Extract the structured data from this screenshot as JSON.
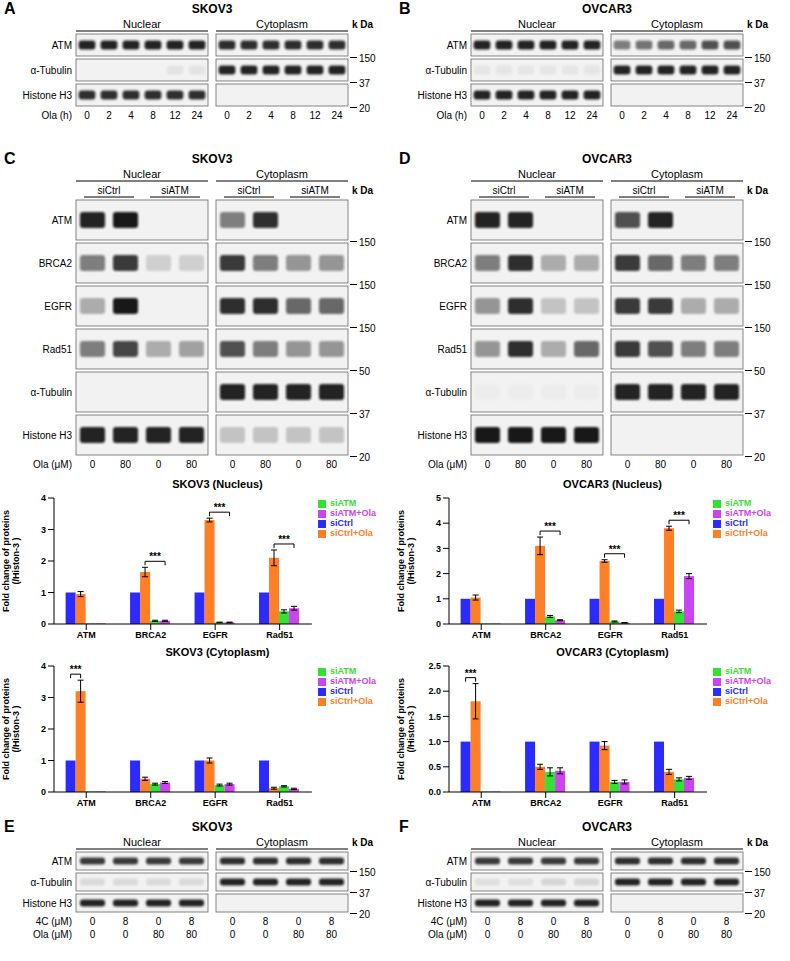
{
  "chart_data": [
    {
      "type": "bar",
      "title": "SKOV3 (Nucleus)",
      "y_label": "Fold change of proteins (/Histon-3 )",
      "categories": [
        "ATM",
        "BRCA2",
        "EGFR",
        "Rad51"
      ],
      "series": [
        {
          "name": "siCtrl",
          "color": "#2b2bff",
          "values": [
            1,
            1,
            1,
            1
          ],
          "errors": [
            0,
            0,
            0,
            0
          ]
        },
        {
          "name": "siCtrl+Ola",
          "color": "#ff7f27",
          "values": [
            0.95,
            1.65,
            3.3,
            2.1
          ],
          "errors": [
            0.08,
            0.15,
            0.06,
            0.25
          ]
        },
        {
          "name": "siATM",
          "color": "#33e033",
          "values": [
            0.02,
            0.1,
            0.05,
            0.4
          ],
          "errors": [
            0,
            0.02,
            0.01,
            0.05
          ]
        },
        {
          "name": "siATM+Ola",
          "color": "#cc44ee",
          "values": [
            0.02,
            0.1,
            0.05,
            0.5
          ],
          "errors": [
            0,
            0.02,
            0.01,
            0.06
          ]
        }
      ],
      "ylim": [
        0,
        4
      ],
      "yticks": [
        0,
        1,
        2,
        3,
        4
      ],
      "legend": "top-right",
      "annotations": [
        {
          "category": "BRCA2",
          "from": "siCtrl+Ola",
          "to": "siATM+Ola",
          "label": "***"
        },
        {
          "category": "EGFR",
          "from": "siCtrl+Ola",
          "to": "siATM+Ola",
          "label": "***"
        },
        {
          "category": "Rad51",
          "from": "siCtrl+Ola",
          "to": "siATM+Ola",
          "label": "***"
        }
      ]
    },
    {
      "type": "bar",
      "title": "OVCAR3 (Nucleus)",
      "y_label": "Fold change of proteins (/Histon-3 )",
      "categories": [
        "ATM",
        "BRCA2",
        "EGFR",
        "Rad51"
      ],
      "series": [
        {
          "name": "siCtrl",
          "color": "#2b2bff",
          "values": [
            1,
            1,
            1,
            1
          ],
          "errors": [
            0,
            0,
            0,
            0
          ]
        },
        {
          "name": "siCtrl+Ola",
          "color": "#ff7f27",
          "values": [
            1.05,
            3.1,
            2.5,
            3.8
          ],
          "errors": [
            0.1,
            0.35,
            0.05,
            0.08
          ]
        },
        {
          "name": "siATM",
          "color": "#33e033",
          "values": [
            0.02,
            0.3,
            0.1,
            0.5
          ],
          "errors": [
            0,
            0.04,
            0.02,
            0.05
          ]
        },
        {
          "name": "siATM+Ola",
          "color": "#cc44ee",
          "values": [
            0.02,
            0.15,
            0.05,
            1.9
          ],
          "errors": [
            0,
            0.02,
            0.01,
            0.1
          ]
        }
      ],
      "ylim": [
        0,
        5
      ],
      "yticks": [
        0,
        1,
        2,
        3,
        4,
        5
      ],
      "legend": "top-right",
      "annotations": [
        {
          "category": "BRCA2",
          "from": "siCtrl+Ola",
          "to": "siATM+Ola",
          "label": "***"
        },
        {
          "category": "EGFR",
          "from": "siCtrl+Ola",
          "to": "siATM+Ola",
          "label": "***"
        },
        {
          "category": "Rad51",
          "from": "siCtrl+Ola",
          "to": "siATM+Ola",
          "label": "***"
        }
      ]
    },
    {
      "type": "bar",
      "title": "SKOV3 (Cytoplasm)",
      "y_label": "Fold change of proteins (/Histon-3 )",
      "categories": [
        "ATM",
        "BRCA2",
        "EGFR",
        "Rad51"
      ],
      "series": [
        {
          "name": "siCtrl",
          "color": "#2b2bff",
          "values": [
            1,
            1,
            1,
            1
          ],
          "errors": [
            0,
            0,
            0,
            0
          ]
        },
        {
          "name": "siCtrl+Ola",
          "color": "#ff7f27",
          "values": [
            3.2,
            0.42,
            1.0,
            0.12
          ],
          "errors": [
            0.35,
            0.05,
            0.08,
            0.03
          ]
        },
        {
          "name": "siATM",
          "color": "#33e033",
          "values": [
            0.02,
            0.25,
            0.22,
            0.18
          ],
          "errors": [
            0,
            0.03,
            0.03,
            0.02
          ]
        },
        {
          "name": "siATM+Ola",
          "color": "#cc44ee",
          "values": [
            0.02,
            0.3,
            0.25,
            0.1
          ],
          "errors": [
            0,
            0.03,
            0.03,
            0.02
          ]
        }
      ],
      "ylim": [
        0,
        4
      ],
      "yticks": [
        0,
        1,
        2,
        3,
        4
      ],
      "legend": "top-right",
      "annotations": [
        {
          "category": "ATM",
          "from": "siCtrl",
          "to": "siCtrl+Ola",
          "label": "***"
        }
      ]
    },
    {
      "type": "bar",
      "title": "OVCAR3 (Cytoplasm)",
      "y_label": "Fold change of proteins (/Histon-3 )",
      "categories": [
        "ATM",
        "BRCA2",
        "EGFR",
        "Rad51"
      ],
      "series": [
        {
          "name": "siCtrl",
          "color": "#2b2bff",
          "values": [
            1,
            1,
            1,
            1
          ],
          "errors": [
            0,
            0,
            0,
            0
          ]
        },
        {
          "name": "siCtrl+Ola",
          "color": "#ff7f27",
          "values": [
            1.8,
            0.5,
            0.92,
            0.4
          ],
          "errors": [
            0.35,
            0.05,
            0.08,
            0.05
          ]
        },
        {
          "name": "siATM",
          "color": "#33e033",
          "values": [
            0.01,
            0.4,
            0.2,
            0.25
          ],
          "errors": [
            0,
            0.08,
            0.03,
            0.03
          ]
        },
        {
          "name": "siATM+Ola",
          "color": "#cc44ee",
          "values": [
            0.01,
            0.42,
            0.2,
            0.28
          ],
          "errors": [
            0,
            0.06,
            0.04,
            0.03
          ]
        }
      ],
      "ylim": [
        0,
        2.5
      ],
      "yticks": [
        {
          "value": 0,
          "label": "0.0"
        },
        {
          "value": 0.5,
          "label": "0.5"
        },
        {
          "value": 1,
          "label": "1.0"
        },
        {
          "value": 1.5,
          "label": "1.5"
        },
        {
          "value": 2,
          "label": "2.0"
        },
        {
          "value": 2.5,
          "label": "2.5"
        }
      ],
      "legend": "top-right",
      "annotations": [
        {
          "category": "ATM",
          "from": "siCtrl",
          "to": "siCtrl+Ola",
          "label": "***"
        }
      ]
    }
  ],
  "blots": [
    {
      "letter": "A",
      "title": "SKOV3",
      "unit": "k Da",
      "rows": [
        "ATM",
        "α-Tubulin",
        "Histone H3"
      ],
      "groups": [
        {
          "name": "Nuclear",
          "bands": [
            [
              0.9,
              0.9,
              0.9,
              0.9,
              0.9,
              0.9
            ],
            [
              0,
              0,
              0,
              0,
              0.06,
              0.06
            ],
            [
              0.85,
              0.85,
              0.85,
              0.85,
              0.85,
              0.85
            ]
          ]
        },
        {
          "name": "Cytoplasm",
          "bands": [
            [
              0.85,
              0.85,
              0.85,
              0.85,
              0.85,
              0.85
            ],
            [
              0.9,
              0.9,
              0.9,
              0.9,
              0.9,
              0.9
            ],
            [
              0,
              0,
              0,
              0,
              0,
              0
            ]
          ]
        }
      ],
      "markers": [
        {
          "label": "150",
          "row": 0
        },
        {
          "label": "37",
          "row": 1
        },
        {
          "label": "20",
          "row": 2
        }
      ],
      "lane_labels": [
        {
          "name": "Ola (h)",
          "values": [
            "0",
            "2",
            "4",
            "8",
            "12",
            "24"
          ]
        }
      ]
    },
    {
      "letter": "B",
      "title": "OVCAR3",
      "unit": "k Da",
      "rows": [
        "ATM",
        "α-Tubulin",
        "Histone H3"
      ],
      "groups": [
        {
          "name": "Nuclear",
          "bands": [
            [
              0.9,
              0.9,
              0.9,
              0.9,
              0.9,
              0.9
            ],
            [
              0.05,
              0.05,
              0.05,
              0.05,
              0.05,
              0.05
            ],
            [
              0.9,
              0.9,
              0.9,
              0.9,
              0.9,
              0.9
            ]
          ]
        },
        {
          "name": "Cytoplasm",
          "bands": [
            [
              0.5,
              0.55,
              0.6,
              0.6,
              0.7,
              0.7
            ],
            [
              0.9,
              0.9,
              0.9,
              0.9,
              0.9,
              0.9
            ],
            [
              0,
              0,
              0,
              0,
              0,
              0
            ]
          ]
        }
      ],
      "markers": [
        {
          "label": "150",
          "row": 0
        },
        {
          "label": "37",
          "row": 1
        },
        {
          "label": "20",
          "row": 2
        }
      ],
      "lane_labels": [
        {
          "name": "Ola (h)",
          "values": [
            "0",
            "2",
            "4",
            "8",
            "12",
            "24"
          ]
        }
      ]
    },
    {
      "letter": "C",
      "title": "SKOV3",
      "unit": "k Da",
      "rows": [
        "ATM",
        "BRCA2",
        "EGFR",
        "Rad51",
        "α-Tubulin",
        "Histone H3"
      ],
      "groups": [
        {
          "name": "Nuclear",
          "subgroups": [
            "siCtrl",
            "siATM"
          ],
          "bands": [
            [
              0.9,
              0.95,
              0,
              0
            ],
            [
              0.5,
              0.8,
              0.15,
              0.15
            ],
            [
              0.3,
              0.95,
              0,
              0
            ],
            [
              0.5,
              0.75,
              0.3,
              0.35
            ],
            [
              0,
              0,
              0,
              0
            ],
            [
              0.9,
              0.9,
              0.9,
              0.9
            ]
          ]
        },
        {
          "name": "Cytoplasm",
          "subgroups": [
            "siCtrl",
            "siATM"
          ],
          "bands": [
            [
              0.5,
              0.85,
              0,
              0
            ],
            [
              0.8,
              0.5,
              0.4,
              0.4
            ],
            [
              0.85,
              0.85,
              0.6,
              0.6
            ],
            [
              0.7,
              0.5,
              0.4,
              0.4
            ],
            [
              0.9,
              0.9,
              0.9,
              0.9
            ],
            [
              0.2,
              0.2,
              0.2,
              0.2
            ]
          ]
        }
      ],
      "markers": [
        {
          "label": "150",
          "row": 0
        },
        {
          "label": "150",
          "row": 1
        },
        {
          "label": "150",
          "row": 2
        },
        {
          "label": "50",
          "row": 3
        },
        {
          "label": "37",
          "row": 4
        },
        {
          "label": "20",
          "row": 5
        }
      ],
      "lane_labels": [
        {
          "name": "Ola (μM)",
          "values": [
            "0",
            "80",
            "0",
            "80"
          ]
        }
      ]
    },
    {
      "letter": "D",
      "title": "OVCAR3",
      "unit": "k Da",
      "rows": [
        "ATM",
        "BRCA2",
        "EGFR",
        "Rad51",
        "α-Tubulin",
        "Histone H3"
      ],
      "groups": [
        {
          "name": "Nuclear",
          "subgroups": [
            "siCtrl",
            "siATM"
          ],
          "bands": [
            [
              0.9,
              0.9,
              0,
              0
            ],
            [
              0.5,
              0.85,
              0.3,
              0.3
            ],
            [
              0.4,
              0.85,
              0.2,
              0.2
            ],
            [
              0.4,
              0.85,
              0.3,
              0.6
            ],
            [
              0.02,
              0.02,
              0.02,
              0.02
            ],
            [
              0.95,
              0.95,
              0.95,
              0.95
            ]
          ]
        },
        {
          "name": "Cytoplasm",
          "subgroups": [
            "siCtrl",
            "siATM"
          ],
          "bands": [
            [
              0.7,
              0.9,
              0,
              0
            ],
            [
              0.8,
              0.6,
              0.5,
              0.5
            ],
            [
              0.8,
              0.8,
              0.3,
              0.3
            ],
            [
              0.8,
              0.7,
              0.5,
              0.5
            ],
            [
              0.9,
              0.9,
              0.9,
              0.9
            ],
            [
              0,
              0,
              0,
              0
            ]
          ]
        }
      ],
      "markers": [
        {
          "label": "150",
          "row": 0
        },
        {
          "label": "150",
          "row": 1
        },
        {
          "label": "150",
          "row": 2
        },
        {
          "label": "50",
          "row": 3
        },
        {
          "label": "37",
          "row": 4
        },
        {
          "label": "20",
          "row": 5
        }
      ],
      "lane_labels": [
        {
          "name": "Ola (μM)",
          "values": [
            "0",
            "80",
            "0",
            "80"
          ]
        }
      ]
    },
    {
      "letter": "E",
      "title": "SKOV3",
      "unit": "k Da",
      "rows": [
        "ATM",
        "α-Tubulin",
        "Histone H3"
      ],
      "groups": [
        {
          "name": "Nuclear",
          "bands": [
            [
              0.8,
              0.8,
              0.8,
              0.8
            ],
            [
              0.1,
              0.1,
              0.1,
              0.1
            ],
            [
              0.9,
              0.9,
              0.9,
              0.9
            ]
          ]
        },
        {
          "name": "Cytoplasm",
          "bands": [
            [
              0.85,
              0.85,
              0.85,
              0.85
            ],
            [
              0.9,
              0.9,
              0.9,
              0.9
            ],
            [
              0,
              0,
              0,
              0
            ]
          ]
        }
      ],
      "markers": [
        {
          "label": "150",
          "row": 0
        },
        {
          "label": "37",
          "row": 1
        },
        {
          "label": "20",
          "row": 2
        }
      ],
      "lane_labels": [
        {
          "name": "4C (μM)",
          "values": [
            "0",
            "8",
            "0",
            "8"
          ]
        },
        {
          "name": "Ola (μM)",
          "values": [
            "0",
            "0",
            "80",
            "80"
          ]
        }
      ]
    },
    {
      "letter": "F",
      "title": "OVCAR3",
      "unit": "k Da",
      "rows": [
        "ATM",
        "α-Tubulin",
        "Histone H3"
      ],
      "groups": [
        {
          "name": "Nuclear",
          "bands": [
            [
              0.8,
              0.8,
              0.8,
              0.8
            ],
            [
              0.08,
              0.08,
              0.12,
              0.12
            ],
            [
              0.9,
              0.9,
              0.9,
              0.9
            ]
          ]
        },
        {
          "name": "Cytoplasm",
          "bands": [
            [
              0.85,
              0.85,
              0.85,
              0.85
            ],
            [
              0.9,
              0.9,
              0.9,
              0.9
            ],
            [
              0,
              0,
              0,
              0
            ]
          ]
        }
      ],
      "markers": [
        {
          "label": "150",
          "row": 0
        },
        {
          "label": "37",
          "row": 1
        },
        {
          "label": "20",
          "row": 2
        }
      ],
      "lane_labels": [
        {
          "name": "4C (μM)",
          "values": [
            "0",
            "8",
            "0",
            "8"
          ]
        },
        {
          "name": "Ola (μM)",
          "values": [
            "0",
            "0",
            "80",
            "80"
          ]
        }
      ]
    }
  ]
}
